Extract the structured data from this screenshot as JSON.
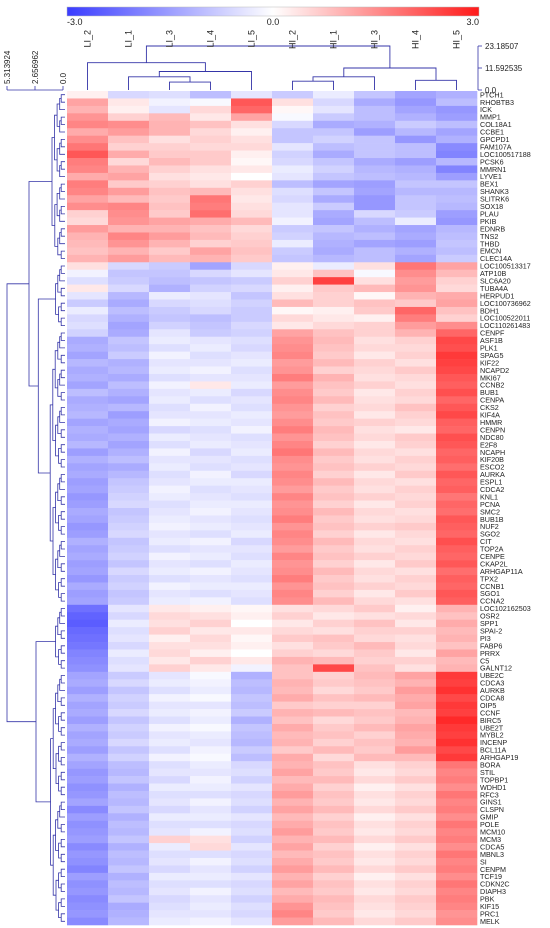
{
  "chart_data": {
    "type": "heatmap",
    "colorbar": {
      "min_label": "-3.0",
      "mid_label": "0.0",
      "max_label": "3.0",
      "min": -3.0,
      "max": 3.0,
      "colors": {
        "low": "#3a3cff",
        "mid": "#ffffff",
        "high": "#ff1a1a"
      }
    },
    "columns": [
      "LI_2",
      "LI_1",
      "LI_3",
      "LI_4",
      "LI_5",
      "HI_2",
      "HI_1",
      "HI_3",
      "HI_4",
      "HI_5"
    ],
    "col_dendrogram_ticks": [
      "23.18507",
      "11.592535",
      "0.0"
    ],
    "row_dendrogram_ticks": [
      "5.313924",
      "2.656962",
      "0.0"
    ],
    "dendrogram_color": "#3535a8",
    "rows": [
      "PTCH1",
      "RHOBTB3",
      "ICK",
      "MMP1",
      "COL18A1",
      "CCBE1",
      "GPCPD1",
      "FAM107A",
      "LOC100517188",
      "PCSK6",
      "MMRN1",
      "LYVE1",
      "BEX1",
      "SHANK3",
      "SLITRK6",
      "SOX18",
      "PLAU",
      "PKIB",
      "EDNRB",
      "TNS2",
      "THBD",
      "EMCN",
      "CLEC14A",
      "LOC100513317",
      "ATP10B",
      "SLC6A20",
      "TUBA4A",
      "HERPUD1",
      "LOC100736962",
      "BDH1",
      "LOC100522011",
      "LOC110261483",
      "CENPF",
      "ASF1B",
      "PLK1",
      "SPAG5",
      "KIF22",
      "NCAPD2",
      "MKI67",
      "CCNB2",
      "BUB1",
      "CENPA",
      "CKS2",
      "KIF4A",
      "HMMR",
      "CENPN",
      "NDC80",
      "E2F8",
      "NCAPH",
      "KIF20B",
      "ESCO2",
      "AURKA",
      "ESPL1",
      "CDCA2",
      "KNL1",
      "PCNA",
      "SMC2",
      "BUB1B",
      "NUF2",
      "SGO2",
      "CIT",
      "TOP2A",
      "CENPE",
      "CKAP2L",
      "ARHGAP11A",
      "TPX2",
      "CCNB1",
      "SGO1",
      "CCNA2",
      "LOC102162503",
      "OSR2",
      "SPP1",
      "SPAI-2",
      "PI3",
      "FABP6",
      "PRRX",
      "C5",
      "GALNT12",
      "UBE2C",
      "CDCA3",
      "AURKB",
      "CDCA8",
      "OIP5",
      "CCNF",
      "BIRC5",
      "UBE2T",
      "MYBL2",
      "INCENP",
      "BCL11A",
      "ARHGAP19",
      "BORA",
      "STIL",
      "TOPBP1",
      "WDHD1",
      "RFC3",
      "GINS1",
      "CLSPN",
      "GMIP",
      "POLE",
      "MCM10",
      "MCM3",
      "CDCA5",
      "MBNL3",
      "SI",
      "CENPM",
      "TCF19",
      "CDKN2C",
      "DIAPH3",
      "PBK",
      "KIF15",
      "PRC1",
      "MELK"
    ],
    "values": [
      [
        0.2,
        -0.6,
        -0.5,
        -1.0,
        -0.4,
        -0.8,
        -0.3,
        -0.9,
        -1.4,
        -1.2
      ],
      [
        1.2,
        0.3,
        -0.2,
        -0.1,
        2.2,
        0.4,
        -0.6,
        -1.3,
        -1.6,
        -1.0
      ],
      [
        1.0,
        0.2,
        -0.4,
        0.5,
        2.0,
        0.1,
        -0.4,
        -1.0,
        -1.4,
        -1.6
      ],
      [
        1.4,
        0.6,
        0.9,
        0.3,
        1.2,
        -0.1,
        -0.8,
        -1.0,
        -1.2,
        -1.5
      ],
      [
        1.6,
        1.5,
        1.0,
        0.8,
        0.4,
        -0.6,
        -1.3,
        -1.2,
        -0.8,
        -1.0
      ],
      [
        1.1,
        1.3,
        1.0,
        0.5,
        0.2,
        -0.9,
        -0.9,
        -1.5,
        -1.1,
        -1.4
      ],
      [
        1.5,
        0.8,
        0.4,
        0.6,
        0.4,
        -0.9,
        -0.7,
        -0.9,
        -1.6,
        -1.2
      ],
      [
        1.8,
        0.6,
        0.6,
        0.5,
        0.5,
        -0.4,
        -1.0,
        -0.9,
        -1.0,
        -1.8
      ],
      [
        2.2,
        1.1,
        0.7,
        0.7,
        0.2,
        -0.7,
        -1.3,
        -0.9,
        -1.0,
        -1.9
      ],
      [
        1.7,
        0.5,
        0.9,
        0.7,
        0.1,
        -0.6,
        -0.9,
        -1.3,
        -1.5,
        -1.1
      ],
      [
        1.6,
        1.0,
        0.6,
        0.4,
        0.3,
        -0.3,
        -0.7,
        -1.1,
        -1.2,
        -1.9
      ],
      [
        1.1,
        1.2,
        0.4,
        0.3,
        0.0,
        -0.4,
        -0.9,
        -1.0,
        -1.1,
        -1.5
      ],
      [
        1.7,
        0.7,
        0.6,
        0.4,
        0.6,
        -1.0,
        -1.4,
        -1.5,
        -0.9,
        -0.9
      ],
      [
        1.6,
        1.3,
        0.8,
        0.9,
        0.4,
        -0.5,
        -0.9,
        -1.4,
        -1.1,
        -1.1
      ],
      [
        1.2,
        0.9,
        0.7,
        1.8,
        0.3,
        -0.6,
        -1.3,
        -1.6,
        -0.9,
        -1.0
      ],
      [
        1.5,
        1.6,
        0.8,
        1.7,
        0.4,
        -0.4,
        -0.8,
        -1.6,
        -0.9,
        -1.1
      ],
      [
        0.6,
        1.5,
        0.7,
        1.9,
        0.5,
        -0.4,
        -1.3,
        -0.6,
        -0.8,
        -1.5
      ],
      [
        0.5,
        1.4,
        1.2,
        1.1,
        0.9,
        -0.2,
        -1.4,
        -1.0,
        -0.3,
        -1.6
      ],
      [
        1.3,
        1.0,
        1.0,
        0.8,
        0.5,
        -0.8,
        -0.9,
        -1.2,
        -1.4,
        -1.1
      ],
      [
        1.0,
        1.6,
        1.3,
        0.9,
        0.6,
        -0.7,
        -1.1,
        -1.0,
        -1.3,
        -1.0
      ],
      [
        0.9,
        1.4,
        1.0,
        0.6,
        0.7,
        -0.3,
        -1.2,
        -1.4,
        -1.5,
        -0.9
      ],
      [
        0.8,
        1.0,
        0.7,
        1.2,
        0.8,
        -0.8,
        -1.3,
        -1.0,
        -1.2,
        -1.0
      ],
      [
        1.0,
        1.3,
        0.9,
        1.0,
        0.7,
        -0.9,
        -1.1,
        -1.0,
        -1.4,
        -0.8
      ],
      [
        0.4,
        -0.6,
        -0.8,
        -1.4,
        -0.6,
        0.2,
        -0.3,
        0.4,
        1.8,
        1.2
      ],
      [
        -0.2,
        -0.9,
        -0.9,
        -0.6,
        -0.4,
        0.3,
        0.8,
        -0.1,
        1.5,
        0.9
      ],
      [
        -0.5,
        -0.8,
        -1.0,
        -0.9,
        -0.8,
        0.6,
        2.5,
        0.4,
        1.3,
        0.6
      ],
      [
        0.3,
        -0.6,
        -1.2,
        -0.7,
        -0.6,
        0.2,
        0.7,
        0.9,
        1.4,
        0.5
      ],
      [
        -0.4,
        -1.1,
        -0.3,
        -0.4,
        -0.9,
        0.4,
        0.6,
        0.1,
        1.0,
        1.1
      ],
      [
        -0.8,
        -1.3,
        -0.6,
        -0.5,
        -0.7,
        0.9,
        0.6,
        0.8,
        0.7,
        1.2
      ],
      [
        -0.3,
        -1.0,
        -0.8,
        -0.6,
        -0.8,
        0.1,
        0.2,
        0.7,
        2.0,
        0.8
      ],
      [
        -0.6,
        -1.2,
        -0.9,
        -1.0,
        -0.8,
        0.5,
        0.3,
        0.2,
        1.7,
        0.6
      ],
      [
        -0.5,
        -1.4,
        -0.7,
        -0.9,
        -0.6,
        0.3,
        0.5,
        0.6,
        1.3,
        1.5
      ],
      [
        -0.7,
        -1.3,
        -0.4,
        -0.8,
        -0.7,
        1.2,
        0.8,
        0.6,
        1.0,
        2.0
      ],
      [
        -1.3,
        -0.9,
        -0.3,
        -0.4,
        -0.5,
        1.4,
        0.9,
        0.4,
        0.6,
        2.4
      ],
      [
        -1.2,
        -1.0,
        -0.5,
        -0.3,
        -0.6,
        1.5,
        0.8,
        0.5,
        0.5,
        2.3
      ],
      [
        -1.4,
        -0.8,
        -0.2,
        -0.5,
        -0.4,
        1.6,
        0.7,
        0.3,
        0.6,
        2.6
      ],
      [
        -1.1,
        -1.2,
        -0.4,
        -0.4,
        -0.3,
        1.3,
        0.9,
        0.6,
        0.4,
        2.5
      ],
      [
        -1.3,
        -1.1,
        -0.3,
        -0.2,
        -0.5,
        1.4,
        0.6,
        0.5,
        0.7,
        2.4
      ],
      [
        -1.2,
        -1.3,
        -0.5,
        -0.4,
        -0.4,
        1.7,
        1.0,
        0.4,
        0.5,
        2.2
      ],
      [
        -1.4,
        -1.0,
        -0.2,
        0.3,
        -0.3,
        1.3,
        0.8,
        0.6,
        0.4,
        2.1
      ],
      [
        -1.0,
        -1.2,
        -0.4,
        -0.3,
        -0.6,
        1.5,
        0.7,
        0.3,
        0.6,
        2.3
      ],
      [
        -1.3,
        -1.4,
        -0.3,
        -0.5,
        -0.4,
        1.6,
        0.9,
        0.4,
        0.5,
        2.0
      ],
      [
        -1.2,
        -1.1,
        -0.5,
        -0.2,
        -0.5,
        1.4,
        0.6,
        0.5,
        0.8,
        2.2
      ],
      [
        -1.1,
        -1.5,
        -0.4,
        -0.4,
        -0.3,
        1.3,
        0.8,
        0.3,
        0.6,
        2.4
      ],
      [
        -1.4,
        -1.3,
        -0.2,
        -0.3,
        -0.4,
        1.5,
        0.7,
        0.6,
        0.5,
        2.1
      ],
      [
        -1.2,
        -1.4,
        -0.6,
        -0.5,
        -0.2,
        1.7,
        0.9,
        0.4,
        0.3,
        2.0
      ],
      [
        -1.3,
        -1.2,
        -0.3,
        -0.4,
        -0.5,
        1.4,
        0.8,
        0.5,
        0.7,
        2.3
      ],
      [
        -1.1,
        -1.4,
        -0.5,
        -0.3,
        -0.4,
        1.6,
        0.6,
        0.3,
        0.6,
        2.2
      ],
      [
        -1.5,
        -1.2,
        -0.2,
        -0.6,
        -0.3,
        1.8,
        0.9,
        0.5,
        0.4,
        2.0
      ],
      [
        -1.2,
        -1.0,
        -0.4,
        -0.4,
        -0.5,
        1.5,
        0.7,
        0.4,
        0.6,
        2.1
      ],
      [
        -1.4,
        -1.3,
        -0.3,
        -0.5,
        -0.4,
        1.4,
        0.8,
        0.6,
        0.5,
        1.9
      ],
      [
        -1.3,
        -1.1,
        -0.5,
        -0.2,
        -0.6,
        1.6,
        0.6,
        0.3,
        0.7,
        2.2
      ],
      [
        -1.5,
        -0.9,
        -0.4,
        -0.3,
        -0.3,
        1.5,
        0.9,
        0.5,
        0.4,
        2.0
      ],
      [
        -1.4,
        -0.8,
        -0.2,
        -0.5,
        -0.4,
        1.3,
        0.7,
        0.4,
        0.6,
        2.1
      ],
      [
        -1.6,
        -0.7,
        -0.3,
        -0.4,
        -0.5,
        1.6,
        0.8,
        0.6,
        0.5,
        1.8
      ],
      [
        -1.5,
        -0.6,
        -0.5,
        -0.3,
        -0.3,
        1.4,
        0.6,
        0.3,
        0.6,
        2.0
      ],
      [
        -1.3,
        -0.9,
        -0.4,
        -0.2,
        -0.4,
        1.5,
        0.9,
        0.5,
        0.4,
        1.9
      ],
      [
        -1.4,
        -0.8,
        -0.3,
        -0.4,
        -0.5,
        1.7,
        0.7,
        0.4,
        0.5,
        2.2
      ],
      [
        -1.6,
        -0.7,
        -0.2,
        -0.3,
        -0.4,
        1.4,
        0.8,
        0.6,
        0.7,
        2.1
      ],
      [
        -1.5,
        -0.6,
        -0.4,
        -0.5,
        -0.3,
        1.6,
        0.6,
        0.3,
        0.5,
        2.0
      ],
      [
        -1.2,
        -0.9,
        -0.3,
        -0.2,
        -0.6,
        1.5,
        0.9,
        0.5,
        0.4,
        2.3
      ],
      [
        -1.4,
        -0.8,
        -0.5,
        -0.4,
        -0.4,
        1.3,
        0.7,
        0.4,
        0.6,
        2.1
      ],
      [
        -1.3,
        -0.7,
        -0.2,
        -0.3,
        -0.5,
        1.6,
        0.8,
        0.6,
        0.5,
        2.0
      ],
      [
        -1.5,
        -0.9,
        -0.4,
        -0.5,
        -0.3,
        1.4,
        0.6,
        0.3,
        0.7,
        2.2
      ],
      [
        -1.4,
        -0.6,
        -0.3,
        -0.2,
        -0.4,
        1.5,
        0.9,
        0.5,
        0.4,
        1.9
      ],
      [
        -1.6,
        -0.8,
        -0.5,
        -0.4,
        -0.5,
        1.7,
        0.7,
        0.4,
        0.6,
        2.1
      ],
      [
        -1.3,
        -0.7,
        -0.2,
        -0.3,
        -0.3,
        1.4,
        0.8,
        0.6,
        0.5,
        2.0
      ],
      [
        -1.5,
        -0.9,
        -0.4,
        -0.5,
        -0.4,
        1.6,
        0.6,
        0.3,
        0.7,
        2.2
      ],
      [
        -1.4,
        -0.8,
        -0.3,
        -0.2,
        -0.5,
        1.5,
        0.9,
        0.5,
        0.4,
        2.1
      ],
      [
        -2.2,
        -0.4,
        0.3,
        0.2,
        0.1,
        0.4,
        0.5,
        0.7,
        0.2,
        1.0
      ],
      [
        -2.4,
        -0.6,
        0.5,
        0.4,
        0.2,
        0.6,
        0.3,
        0.4,
        0.5,
        0.8
      ],
      [
        -2.5,
        -0.3,
        0.4,
        0.6,
        0.0,
        0.3,
        0.6,
        0.8,
        0.3,
        1.1
      ],
      [
        -2.3,
        -0.5,
        0.6,
        0.3,
        0.3,
        0.5,
        0.4,
        0.6,
        0.6,
        0.9
      ],
      [
        -2.2,
        -0.4,
        0.2,
        0.5,
        0.1,
        0.7,
        0.8,
        0.5,
        0.4,
        1.0
      ],
      [
        -2.1,
        -0.6,
        0.4,
        0.4,
        0.2,
        0.4,
        0.7,
        0.9,
        0.5,
        0.8
      ],
      [
        -1.9,
        -0.3,
        0.5,
        0.2,
        0.0,
        0.6,
        0.5,
        0.7,
        0.3,
        1.2
      ],
      [
        -1.8,
        -0.5,
        0.3,
        0.6,
        0.3,
        1.0,
        0.9,
        0.6,
        0.6,
        0.9
      ],
      [
        -1.7,
        -0.4,
        0.6,
        0.3,
        -0.2,
        0.8,
        2.4,
        0.8,
        0.4,
        1.0
      ],
      [
        -1.4,
        -0.8,
        -0.4,
        -0.1,
        -1.2,
        0.8,
        0.6,
        0.9,
        1.2,
        2.6
      ],
      [
        -1.3,
        -0.6,
        -0.3,
        -0.2,
        -1.0,
        1.0,
        0.7,
        0.8,
        1.0,
        2.5
      ],
      [
        -1.5,
        -0.9,
        -0.5,
        -0.3,
        -1.1,
        0.9,
        0.5,
        0.7,
        1.3,
        2.7
      ],
      [
        -1.2,
        -0.7,
        -0.2,
        -0.1,
        -0.9,
        1.1,
        0.8,
        0.9,
        1.1,
        2.4
      ],
      [
        -1.4,
        -0.8,
        -0.4,
        -0.4,
        -1.0,
        0.7,
        0.6,
        0.6,
        1.2,
        2.6
      ],
      [
        -1.3,
        -0.6,
        -0.3,
        -0.2,
        -0.8,
        1.0,
        0.9,
        0.8,
        0.9,
        2.5
      ],
      [
        -1.5,
        -0.9,
        -0.5,
        -0.3,
        -1.2,
        0.8,
        0.5,
        0.7,
        1.0,
        2.8
      ],
      [
        -1.2,
        -0.7,
        -0.2,
        -0.1,
        -0.9,
        1.1,
        0.7,
        0.9,
        1.2,
        2.6
      ],
      [
        -1.4,
        -0.8,
        -0.4,
        -0.3,
        -1.0,
        0.9,
        0.8,
        0.6,
        1.1,
        2.5
      ],
      [
        -1.3,
        -0.6,
        -0.3,
        -0.4,
        -1.1,
        1.0,
        0.6,
        0.8,
        1.0,
        2.7
      ],
      [
        -1.5,
        -0.9,
        -0.5,
        -0.2,
        -0.8,
        0.7,
        0.9,
        0.7,
        1.3,
        2.4
      ],
      [
        -1.2,
        -0.7,
        -0.2,
        -0.1,
        -1.0,
        1.1,
        0.5,
        0.9,
        0.9,
        2.6
      ],
      [
        -1.4,
        -1.0,
        -0.5,
        -0.3,
        -0.6,
        1.0,
        0.8,
        0.4,
        0.6,
        1.8
      ],
      [
        -1.6,
        -1.1,
        -0.4,
        -0.4,
        -0.5,
        1.2,
        0.7,
        0.3,
        0.5,
        1.6
      ],
      [
        -1.5,
        -0.9,
        -0.6,
        -0.2,
        -0.7,
        0.9,
        0.9,
        0.5,
        0.7,
        1.7
      ],
      [
        -1.7,
        -1.2,
        -0.3,
        -0.3,
        -0.4,
        1.1,
        0.6,
        0.2,
        0.4,
        1.5
      ],
      [
        -1.6,
        -1.0,
        -0.5,
        -0.5,
        -0.6,
        1.3,
        0.8,
        0.4,
        0.6,
        1.8
      ],
      [
        -1.4,
        -1.1,
        -0.4,
        -0.2,
        -0.5,
        1.0,
        0.7,
        0.3,
        0.5,
        1.6
      ],
      [
        -1.8,
        -0.9,
        -0.6,
        -0.4,
        -0.7,
        1.2,
        0.9,
        0.5,
        0.7,
        1.7
      ],
      [
        -1.5,
        -1.2,
        -0.3,
        -0.3,
        -0.4,
        0.9,
        0.6,
        0.2,
        0.4,
        1.5
      ],
      [
        -1.7,
        -1.0,
        -0.5,
        -0.5,
        -0.6,
        1.1,
        0.8,
        0.4,
        0.6,
        1.8
      ],
      [
        -1.6,
        -1.1,
        -0.4,
        -0.2,
        -0.5,
        1.3,
        0.7,
        0.3,
        0.5,
        1.6
      ],
      [
        -1.5,
        -0.9,
        0.6,
        0.4,
        -0.7,
        1.0,
        0.9,
        0.5,
        0.7,
        1.7
      ],
      [
        -1.8,
        -1.2,
        -0.3,
        0.5,
        -0.4,
        1.2,
        0.6,
        0.2,
        0.4,
        1.5
      ],
      [
        -1.6,
        -1.0,
        -0.5,
        -0.5,
        -0.6,
        0.9,
        0.8,
        0.4,
        0.6,
        1.8
      ],
      [
        -1.7,
        -1.1,
        -0.4,
        -0.2,
        -0.5,
        1.1,
        0.7,
        0.3,
        0.5,
        1.6
      ],
      [
        -1.9,
        -0.9,
        -0.6,
        -0.4,
        -0.7,
        1.3,
        0.9,
        0.5,
        0.7,
        1.7
      ],
      [
        -1.5,
        -1.2,
        -0.3,
        -0.3,
        -0.4,
        1.0,
        0.6,
        0.2,
        0.4,
        1.5
      ],
      [
        -1.7,
        -1.0,
        -0.5,
        -0.5,
        -0.6,
        1.2,
        0.8,
        0.4,
        0.6,
        1.8
      ],
      [
        -1.6,
        -1.1,
        -0.4,
        -0.2,
        -0.5,
        0.9,
        0.7,
        0.3,
        0.5,
        1.6
      ],
      [
        -1.8,
        -0.9,
        -0.6,
        -0.4,
        -0.7,
        1.1,
        0.9,
        0.5,
        0.7,
        1.7
      ],
      [
        -1.7,
        -1.3,
        -0.5,
        -0.3,
        -0.5,
        1.4,
        0.8,
        0.4,
        0.6,
        1.6
      ],
      [
        -1.6,
        -1.2,
        -0.4,
        -0.4,
        -0.6,
        1.6,
        0.7,
        0.3,
        0.5,
        1.4
      ],
      [
        -1.8,
        -1.1,
        -0.3,
        -0.2,
        -0.4,
        1.3,
        0.9,
        0.5,
        0.7,
        1.5
      ]
    ]
  }
}
